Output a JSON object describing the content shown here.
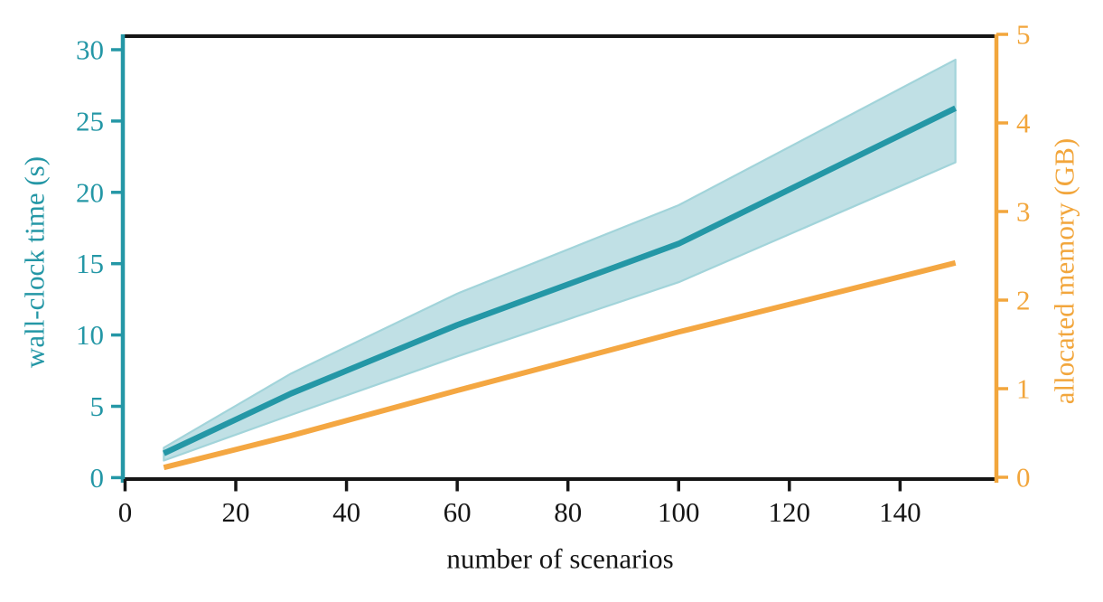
{
  "figure": {
    "xlabel": "number of scenarios",
    "ylabel_left": "wall-clock time (s)",
    "ylabel_right": "allocated memory (GB)"
  },
  "chart_data": {
    "type": "line",
    "title": "",
    "xlabel": "number of scenarios",
    "ylabel_left": "wall-clock time (s)",
    "ylabel_right": "allocated memory (GB)",
    "x": [
      7,
      30,
      60,
      100,
      150
    ],
    "series": [
      {
        "name": "wall-clock time (s)",
        "axis": "left",
        "color": "#2497a6",
        "values": [
          1.7,
          5.9,
          10.7,
          16.4,
          25.9
        ],
        "band_low": [
          1.2,
          4.4,
          8.5,
          13.7,
          22.1
        ],
        "band_high": [
          2.1,
          7.3,
          12.9,
          19.1,
          29.3
        ],
        "band_fill": "#c0e0e5",
        "band_edge": "#a2d4da"
      },
      {
        "name": "allocated memory (GB)",
        "axis": "right",
        "color": "#f4a742",
        "values": [
          0.11,
          0.47,
          0.98,
          1.64,
          2.42
        ]
      }
    ],
    "x_ticks": [
      0,
      20,
      40,
      60,
      80,
      100,
      120,
      140
    ],
    "left_ticks": [
      0,
      5,
      10,
      15,
      20,
      25,
      30
    ],
    "right_ticks": [
      0,
      1,
      2,
      3,
      4,
      5
    ],
    "xlim": [
      -0.4,
      157.4
    ],
    "ylim_left": [
      -0.1,
      30.95
    ],
    "ylim_right": [
      0,
      5
    ],
    "grid": false,
    "legend": "none",
    "axis_colors": {
      "left": "#2497a6",
      "right": "#f2a63c",
      "bottom": "#151515",
      "top": "#151515"
    }
  }
}
